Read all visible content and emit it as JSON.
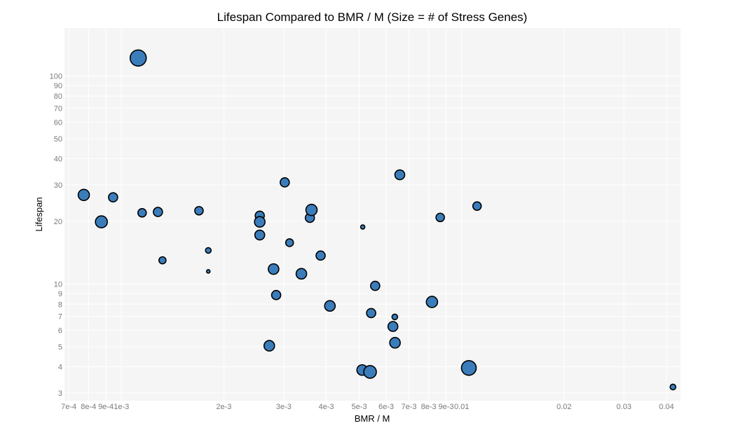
{
  "chart_data": {
    "type": "scatter",
    "title": "Lifespan Compared to BMR / M (Size = # of Stress Genes)",
    "xlabel": "BMR / M",
    "ylabel": "Lifespan",
    "x_scale": "log",
    "y_scale": "log",
    "xlim": [
      0.00068,
      0.044
    ],
    "ylim": [
      2.75,
      170
    ],
    "grid": true,
    "x_ticks": [
      {
        "value": 0.0007,
        "label": "7e-4"
      },
      {
        "value": 0.0008,
        "label": "8e-4"
      },
      {
        "value": 0.0009,
        "label": "9e-4"
      },
      {
        "value": 0.001,
        "label": "1e-3"
      },
      {
        "value": 0.002,
        "label": "2e-3"
      },
      {
        "value": 0.003,
        "label": "3e-3"
      },
      {
        "value": 0.004,
        "label": "4e-3"
      },
      {
        "value": 0.005,
        "label": "5e-3"
      },
      {
        "value": 0.006,
        "label": "6e-3"
      },
      {
        "value": 0.007,
        "label": "7e-3"
      },
      {
        "value": 0.008,
        "label": "8e-3"
      },
      {
        "value": 0.009,
        "label": "9e-3"
      },
      {
        "value": 0.01,
        "label": "0.01"
      },
      {
        "value": 0.02,
        "label": "0.02"
      },
      {
        "value": 0.03,
        "label": "0.03"
      },
      {
        "value": 0.04,
        "label": "0.04"
      }
    ],
    "y_ticks": [
      {
        "value": 3,
        "label": "3"
      },
      {
        "value": 4,
        "label": "4"
      },
      {
        "value": 5,
        "label": "5"
      },
      {
        "value": 6,
        "label": "6"
      },
      {
        "value": 7,
        "label": "7"
      },
      {
        "value": 8,
        "label": "8"
      },
      {
        "value": 9,
        "label": "9"
      },
      {
        "value": 10,
        "label": "10"
      },
      {
        "value": 20,
        "label": "20"
      },
      {
        "value": 30,
        "label": "30"
      },
      {
        "value": 40,
        "label": "40"
      },
      {
        "value": 50,
        "label": "50"
      },
      {
        "value": 60,
        "label": "60"
      },
      {
        "value": 70,
        "label": "70"
      },
      {
        "value": 80,
        "label": "80"
      },
      {
        "value": 90,
        "label": "90"
      },
      {
        "value": 100,
        "label": "100"
      }
    ],
    "points": [
      {
        "x": 0.000775,
        "y": 26.8,
        "size": 16
      },
      {
        "x": 0.000873,
        "y": 19.9,
        "size": 17
      },
      {
        "x": 0.000945,
        "y": 26.1,
        "size": 13
      },
      {
        "x": 0.00112,
        "y": 122,
        "size": 23
      },
      {
        "x": 0.00115,
        "y": 22.0,
        "size": 12
      },
      {
        "x": 0.00128,
        "y": 22.2,
        "size": 13
      },
      {
        "x": 0.00132,
        "y": 13.0,
        "size": 10
      },
      {
        "x": 0.00169,
        "y": 22.5,
        "size": 12
      },
      {
        "x": 0.0018,
        "y": 14.5,
        "size": 8
      },
      {
        "x": 0.0018,
        "y": 11.5,
        "size": 5
      },
      {
        "x": 0.00255,
        "y": 21.3,
        "size": 13
      },
      {
        "x": 0.00255,
        "y": 19.9,
        "size": 15
      },
      {
        "x": 0.00255,
        "y": 17.2,
        "size": 14
      },
      {
        "x": 0.00272,
        "y": 5.05,
        "size": 15
      },
      {
        "x": 0.0028,
        "y": 11.8,
        "size": 15
      },
      {
        "x": 0.00285,
        "y": 8.85,
        "size": 13
      },
      {
        "x": 0.00302,
        "y": 30.8,
        "size": 13
      },
      {
        "x": 0.00312,
        "y": 15.8,
        "size": 11
      },
      {
        "x": 0.00338,
        "y": 11.2,
        "size": 15
      },
      {
        "x": 0.00358,
        "y": 20.8,
        "size": 13
      },
      {
        "x": 0.00362,
        "y": 22.7,
        "size": 16
      },
      {
        "x": 0.00385,
        "y": 13.7,
        "size": 13
      },
      {
        "x": 0.0041,
        "y": 7.85,
        "size": 15
      },
      {
        "x": 0.0051,
        "y": 3.86,
        "size": 15
      },
      {
        "x": 0.00512,
        "y": 18.8,
        "size": 6
      },
      {
        "x": 0.00538,
        "y": 3.78,
        "size": 18
      },
      {
        "x": 0.00542,
        "y": 7.25,
        "size": 13
      },
      {
        "x": 0.00557,
        "y": 9.8,
        "size": 13
      },
      {
        "x": 0.00628,
        "y": 6.25,
        "size": 14
      },
      {
        "x": 0.00636,
        "y": 6.95,
        "size": 8
      },
      {
        "x": 0.00637,
        "y": 5.22,
        "size": 15
      },
      {
        "x": 0.00658,
        "y": 33.5,
        "size": 14
      },
      {
        "x": 0.00818,
        "y": 8.2,
        "size": 16
      },
      {
        "x": 0.00865,
        "y": 20.9,
        "size": 12
      },
      {
        "x": 0.0105,
        "y": 3.95,
        "size": 21
      },
      {
        "x": 0.0111,
        "y": 23.7,
        "size": 12
      },
      {
        "x": 0.0418,
        "y": 3.2,
        "size": 8
      }
    ]
  }
}
